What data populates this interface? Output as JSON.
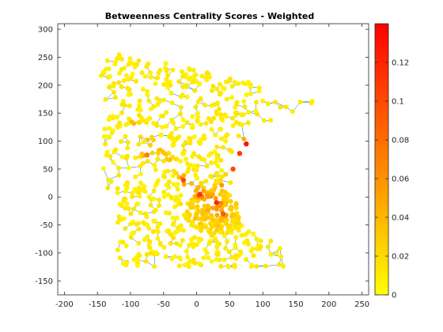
{
  "chart_data": {
    "type": "scatter",
    "title": "Betweenness Centrality Scores - Weighted",
    "xlabel": "",
    "ylabel": "",
    "xlim": [
      -210,
      260
    ],
    "ylim": [
      -175,
      310
    ],
    "xticks": [
      -200,
      -150,
      -100,
      -50,
      0,
      50,
      100,
      150,
      200,
      250
    ],
    "yticks": [
      -150,
      -100,
      -50,
      0,
      50,
      100,
      150,
      200,
      250,
      300
    ],
    "colorbar": {
      "min": 0,
      "max": 0.14,
      "ticks": [
        0,
        0.02,
        0.04,
        0.06,
        0.08,
        0.1,
        0.12
      ],
      "colormap": "autumn (reversed: yellow to red)",
      "color_low": "#ffff00",
      "color_high": "#ff0000"
    },
    "edge_color": "#0072bd",
    "description_note": "Road network graph of Minnesota; nodes colored by weighted betweenness centrality.",
    "highlights": [
      {
        "x": 75,
        "y": 95,
        "value": 0.13
      },
      {
        "x": 65,
        "y": 78,
        "value": 0.11
      },
      {
        "x": 55,
        "y": 50,
        "value": 0.1
      },
      {
        "x": 30,
        "y": -10,
        "value": 0.12
      },
      {
        "x": -20,
        "y": 30,
        "value": 0.1
      },
      {
        "x": 5,
        "y": 5,
        "value": 0.11
      },
      {
        "x": -75,
        "y": 75,
        "value": 0.07
      },
      {
        "x": 40,
        "y": -30,
        "value": 0.09
      }
    ]
  }
}
